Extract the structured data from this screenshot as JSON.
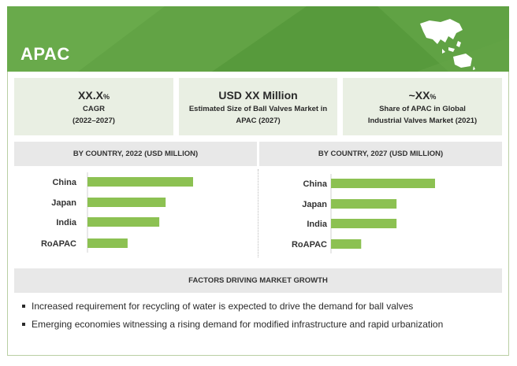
{
  "header": {
    "title": "APAC"
  },
  "kpis": [
    {
      "value": "XX.X",
      "value_suffix": "%",
      "line1": "CAGR",
      "line2": "(2022–2027)"
    },
    {
      "value": "USD XX Million",
      "value_suffix": "",
      "line1": "Estimated Size of Ball Valves Market in",
      "line2": "APAC (2027)"
    },
    {
      "value": "~XX",
      "value_suffix": "%",
      "line1": "Share of APAC in Global",
      "line2": "Industrial Valves Market (2021)"
    }
  ],
  "chart_data": [
    {
      "type": "bar",
      "orientation": "horizontal",
      "title": "BY COUNTRY, 2022 (USD MILLION)",
      "categories": [
        "China",
        "Japan",
        "India",
        "RoAPAC"
      ],
      "values": [
        100,
        74,
        68,
        38
      ],
      "color": "#8cc152",
      "xlim": [
        0,
        100
      ],
      "axes_labels": false,
      "grid": false
    },
    {
      "type": "bar",
      "orientation": "horizontal",
      "title": "BY COUNTRY, 2027 (USD MILLION)",
      "categories": [
        "China",
        "Japan",
        "India",
        "RoAPAC"
      ],
      "values": [
        100,
        63,
        63,
        29
      ],
      "color": "#8cc152",
      "xlim": [
        0,
        100
      ],
      "axes_labels": false,
      "grid": false
    }
  ],
  "factors": {
    "title": "FACTORS DRIVING MARKET GROWTH",
    "items": [
      "Increased requirement for recycling of water is expected to drive the demand for ball valves",
      "Emerging economies witnessing a rising demand for modified infrastructure and rapid urbanization"
    ]
  },
  "colors": {
    "header_green": "#5e9f42",
    "bar_green": "#8cc152",
    "kpi_bg": "#e9efe3",
    "section_bg": "#e8e8e8"
  }
}
